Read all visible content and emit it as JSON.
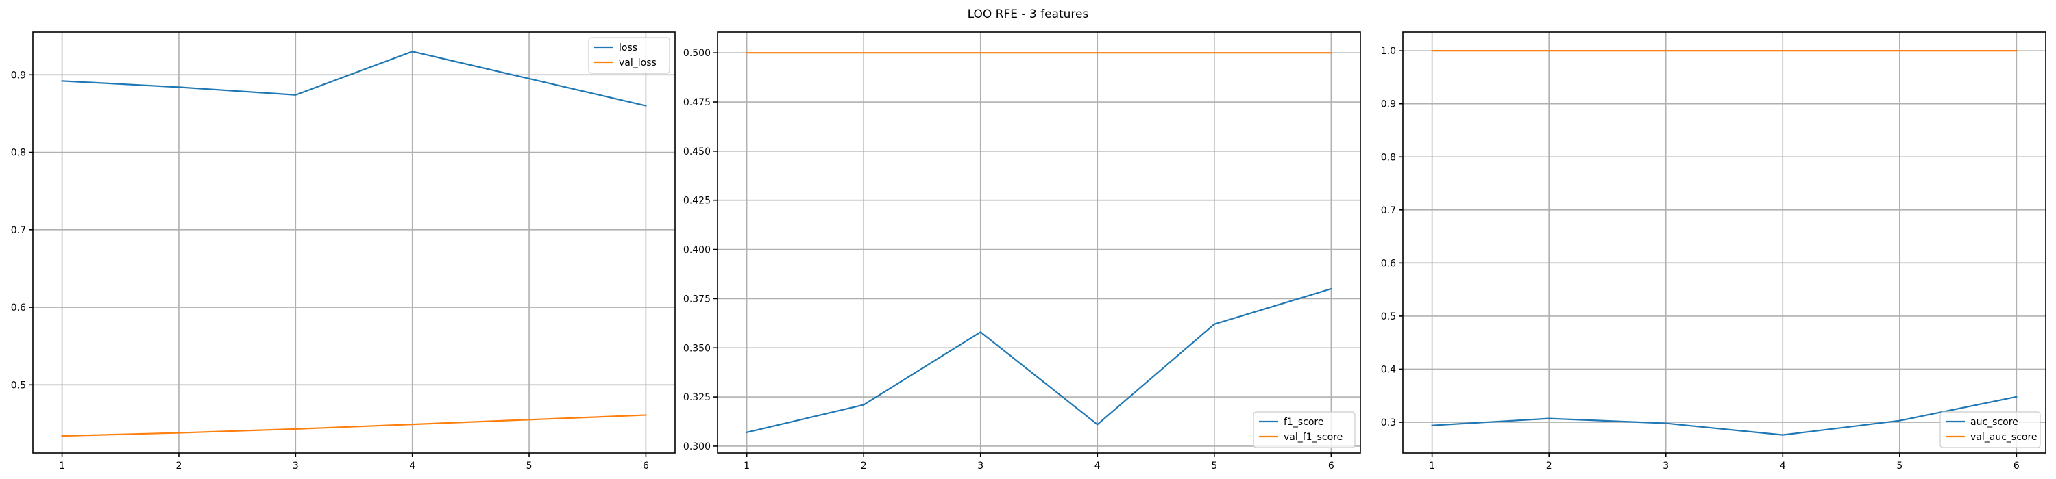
{
  "figure": {
    "suptitle": "LOO RFE - 3 features"
  },
  "chart_data": [
    {
      "type": "line",
      "title": "",
      "xlabel": "",
      "ylabel": "",
      "x": [
        1,
        2,
        3,
        4,
        5,
        6
      ],
      "xlim": [
        0.75,
        6.25
      ],
      "ylim": [
        0.412,
        0.955
      ],
      "yticks": [
        0.5,
        0.6,
        0.7,
        0.8,
        0.9
      ],
      "ytick_labels": [
        "0.5",
        "0.6",
        "0.7",
        "0.8",
        "0.9"
      ],
      "xticks": [
        1,
        2,
        3,
        4,
        5,
        6
      ],
      "xtick_labels": [
        "1",
        "2",
        "3",
        "4",
        "5",
        "6"
      ],
      "grid": true,
      "legend_loc": "upper right",
      "series": [
        {
          "name": "loss",
          "color": "#1f77b4",
          "values": [
            0.892,
            0.884,
            0.874,
            0.93,
            0.895,
            0.86
          ]
        },
        {
          "name": "val_loss",
          "color": "#ff7f0e",
          "values": [
            0.434,
            0.438,
            0.443,
            0.449,
            0.455,
            0.461
          ]
        }
      ]
    },
    {
      "type": "line",
      "title": "",
      "xlabel": "",
      "ylabel": "",
      "x": [
        1,
        2,
        3,
        4,
        5,
        6
      ],
      "xlim": [
        0.75,
        6.25
      ],
      "ylim": [
        0.2965,
        0.5105
      ],
      "yticks": [
        0.3,
        0.325,
        0.35,
        0.375,
        0.4,
        0.425,
        0.45,
        0.475,
        0.5
      ],
      "ytick_labels": [
        "0.300",
        "0.325",
        "0.350",
        "0.375",
        "0.400",
        "0.425",
        "0.450",
        "0.475",
        "0.500"
      ],
      "xticks": [
        1,
        2,
        3,
        4,
        5,
        6
      ],
      "xtick_labels": [
        "1",
        "2",
        "3",
        "4",
        "5",
        "6"
      ],
      "grid": true,
      "legend_loc": "lower right",
      "series": [
        {
          "name": "f1_score",
          "color": "#1f77b4",
          "values": [
            0.307,
            0.321,
            0.358,
            0.311,
            0.362,
            0.38
          ]
        },
        {
          "name": "val_f1_score",
          "color": "#ff7f0e",
          "values": [
            0.5,
            0.5,
            0.5,
            0.5,
            0.5,
            0.5
          ]
        }
      ]
    },
    {
      "type": "line",
      "title": "",
      "xlabel": "",
      "ylabel": "",
      "x": [
        1,
        2,
        3,
        4,
        5,
        6
      ],
      "xlim": [
        0.75,
        6.25
      ],
      "ylim": [
        0.242,
        1.035
      ],
      "yticks": [
        0.3,
        0.4,
        0.5,
        0.6,
        0.7,
        0.8,
        0.9,
        1.0
      ],
      "ytick_labels": [
        "0.3",
        "0.4",
        "0.5",
        "0.6",
        "0.7",
        "0.8",
        "0.9",
        "1.0"
      ],
      "xticks": [
        1,
        2,
        3,
        4,
        5,
        6
      ],
      "xtick_labels": [
        "1",
        "2",
        "3",
        "4",
        "5",
        "6"
      ],
      "grid": true,
      "legend_loc": "lower right",
      "series": [
        {
          "name": "auc_score",
          "color": "#1f77b4",
          "values": [
            0.294,
            0.307,
            0.298,
            0.276,
            0.303,
            0.348
          ]
        },
        {
          "name": "val_auc_score",
          "color": "#ff7f0e",
          "values": [
            1.0,
            1.0,
            1.0,
            1.0,
            1.0,
            1.0
          ]
        }
      ]
    }
  ]
}
